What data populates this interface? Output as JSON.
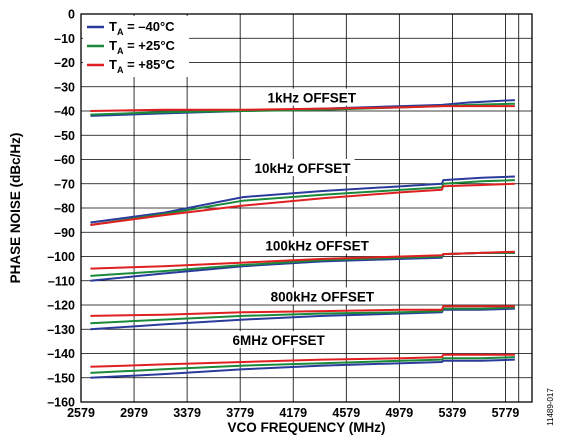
{
  "colors": {
    "minus40": "#2b3b9b",
    "plus25": "#1a8a3a",
    "plus85": "#e02020",
    "grid": "#000000"
  },
  "figure_id": "11489-017",
  "chart_data": {
    "type": "line",
    "xlabel": "VCO FREQUENCY (MHz)",
    "ylabel": "PHASE NOISE (dBc/Hz)",
    "xlim": [
      2579,
      5979
    ],
    "ylim": [
      -160,
      0
    ],
    "x_ticks": [
      2579,
      2979,
      3379,
      3779,
      4179,
      4579,
      4979,
      5379,
      5779
    ],
    "y_ticks": [
      0,
      -10,
      -20,
      -30,
      -40,
      -50,
      -60,
      -70,
      -80,
      -90,
      -100,
      -110,
      -120,
      -130,
      -140,
      -150,
      -160
    ],
    "grid": true,
    "legend": {
      "placement": "top-left",
      "entries": [
        {
          "prefix": "T",
          "sub": "A",
          "value": " = –40°C",
          "color_key": "minus40"
        },
        {
          "prefix": "T",
          "sub": "A",
          "value": " = +25°C",
          "color_key": "plus25"
        },
        {
          "prefix": "T",
          "sub": "A",
          "value": " = +85°C",
          "color_key": "plus85"
        }
      ]
    },
    "groups": [
      {
        "label": "1kHz OFFSET",
        "label_at": [
          4319,
          -34.5
        ],
        "x": [
          2650,
          3200,
          3800,
          4400,
          5000,
          5300,
          5500,
          5850
        ],
        "minus40": [
          -42,
          -41,
          -40,
          -39,
          -38,
          -37.5,
          -36.5,
          -35.5
        ],
        "plus25": [
          -41.5,
          -40.5,
          -40,
          -39.5,
          -38.5,
          -38,
          -37.5,
          -37
        ],
        "plus85": [
          -40,
          -39.5,
          -39.5,
          -39,
          -38.5,
          -38,
          -38,
          -38
        ]
      },
      {
        "label": "10kHz OFFSET",
        "label_at": [
          4249,
          -63.5
        ],
        "x": [
          2650,
          3200,
          3800,
          4400,
          5000,
          5300,
          5310,
          5600,
          5850
        ],
        "minus40": [
          -86,
          -82,
          -75.5,
          -73,
          -71,
          -70,
          -68.5,
          -67.5,
          -67
        ],
        "plus25": [
          -87,
          -82.5,
          -77,
          -74.5,
          -72.5,
          -71.5,
          -70,
          -69,
          -68.5
        ],
        "plus85": [
          -87,
          -83,
          -79,
          -76,
          -73.5,
          -72.5,
          -71,
          -70.5,
          -70
        ]
      },
      {
        "label": "100kHz OFFSET",
        "label_at": [
          4359,
          -95.5
        ],
        "x": [
          2650,
          3200,
          3800,
          4400,
          5000,
          5300,
          5310,
          5600,
          5850
        ],
        "minus40": [
          -110,
          -107,
          -104,
          -102,
          -101,
          -100.5,
          -99,
          -98.5,
          -98.5
        ],
        "plus25": [
          -108,
          -106,
          -103.5,
          -101.5,
          -100.5,
          -100,
          -99,
          -98.5,
          -98.5
        ],
        "plus85": [
          -105,
          -104,
          -102.5,
          -101,
          -100,
          -99.5,
          -99,
          -98.5,
          -98
        ]
      },
      {
        "label": "800kHz OFFSET",
        "label_at": [
          4399,
          -116.5
        ],
        "x": [
          2650,
          3200,
          3800,
          4400,
          5000,
          5300,
          5310,
          5600,
          5850
        ],
        "minus40": [
          -130,
          -128,
          -126,
          -124.5,
          -123.5,
          -123,
          -122,
          -122,
          -121.5
        ],
        "plus25": [
          -127.5,
          -126,
          -124.5,
          -123.5,
          -123,
          -122.5,
          -121.5,
          -121.5,
          -121
        ],
        "plus85": [
          -124.5,
          -124,
          -123,
          -122.5,
          -122,
          -122,
          -120.5,
          -120.5,
          -120.5
        ]
      },
      {
        "label": "6MHz OFFSET",
        "label_at": [
          4069,
          -134.5
        ],
        "x": [
          2650,
          3200,
          3800,
          4400,
          5000,
          5300,
          5310,
          5600,
          5850
        ],
        "minus40": [
          -150,
          -148.5,
          -146.5,
          -145,
          -144,
          -143.5,
          -143,
          -143,
          -142.5
        ],
        "plus25": [
          -148,
          -146.5,
          -145,
          -144,
          -143,
          -142.5,
          -142,
          -142,
          -141.5
        ],
        "plus85": [
          -145.5,
          -144.5,
          -143.5,
          -142.5,
          -142,
          -141.5,
          -140.5,
          -140.5,
          -140.5
        ]
      }
    ]
  }
}
